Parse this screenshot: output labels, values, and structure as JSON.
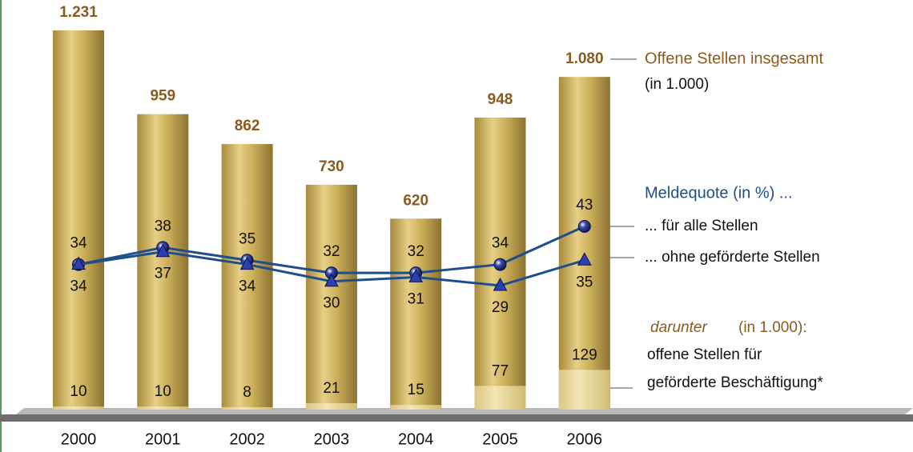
{
  "chart_data": {
    "type": "bar",
    "categories": [
      "2000",
      "2001",
      "2002",
      "2003",
      "2004",
      "2005",
      "2006"
    ],
    "y2_label": "Meldequote (in %) ...",
    "series": [
      {
        "name": "Offene Stellen insgesamt",
        "unit": "(in 1.000)",
        "type": "bar",
        "color": "#c9a94e",
        "values": [
          1231,
          959,
          862,
          730,
          620,
          948,
          1080
        ],
        "value_labels": [
          "1.231",
          "959",
          "862",
          "730",
          "620",
          "948",
          "1.080"
        ]
      },
      {
        "name": "... für alle Stellen",
        "type": "line",
        "axis": "y2",
        "color": "#1f4e8c",
        "marker": "circle",
        "values": [
          34,
          38,
          35,
          32,
          32,
          34,
          43
        ]
      },
      {
        "name": "... ohne geförderte Stellen",
        "type": "line",
        "axis": "y2",
        "color": "#1f4e8c",
        "marker": "triangle",
        "values": [
          34,
          37,
          34,
          30,
          31,
          29,
          35
        ]
      },
      {
        "heading": "darunter",
        "unit": "(in 1.000):",
        "label_lines": [
          "offene Stellen für",
          "geförderte Beschäftigung*"
        ],
        "type": "bar-part",
        "color": "#ead79a",
        "values": [
          10,
          10,
          8,
          21,
          15,
          77,
          129
        ]
      }
    ]
  }
}
